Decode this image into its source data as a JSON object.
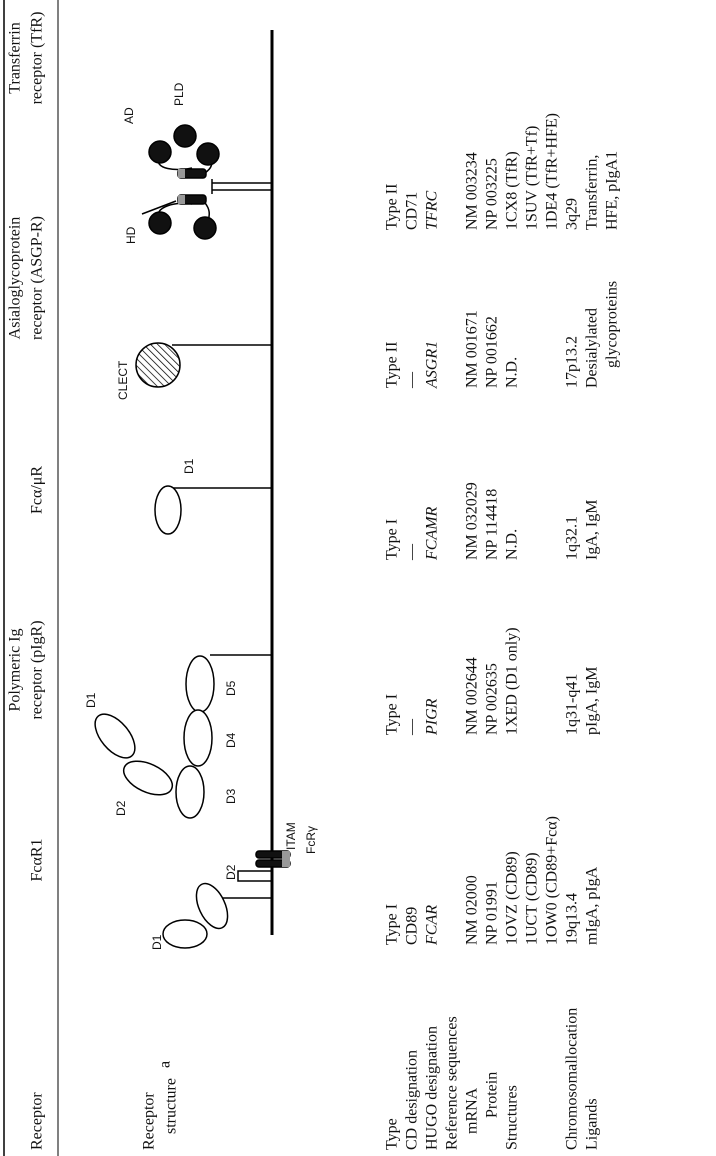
{
  "header": {
    "columns": [
      [
        "Receptor"
      ],
      [
        "FcαR1"
      ],
      [
        "Polymeric Ig",
        "receptor (pIgR)"
      ],
      [
        "Fcα/μR"
      ],
      [
        "Asialoglycoprotein",
        "receptor (ASGP-R)"
      ],
      [
        "Transferrin",
        "receptor (TfR)"
      ]
    ]
  },
  "structure_row": {
    "label": [
      "Receptor",
      "structure"
    ],
    "footnote": "a",
    "diagram_labels": [
      "D1",
      "D2",
      "ITAM",
      "FcRγ",
      "D1",
      "D2",
      "D3",
      "D4",
      "D5",
      "D1",
      "CLECT",
      "HD",
      "AD",
      "PLD"
    ]
  },
  "row_labels": [
    "Type",
    "CD designation",
    "HUGO designation",
    "Reference sequences",
    "mRNA",
    "Protein",
    "Structures",
    "Chromosomallocation",
    "Ligands"
  ],
  "receptors": [
    {
      "type": "Type I",
      "cd": "CD89",
      "hugo": "FCAR",
      "mrna": "NM 02000",
      "protein": "NP 01991",
      "structures": [
        "1OVZ (CD89)",
        "1UCT (CD89)",
        "1OW0 (CD89+Fcα)"
      ],
      "chromosome": "19q13.4",
      "ligands": [
        "mIgA, pIgA"
      ]
    },
    {
      "type": "Type I",
      "cd": "—",
      "hugo": "PIGR",
      "mrna": "NM 002644",
      "protein": "NP 002635",
      "structures": [
        "1XED (D1 only)"
      ],
      "chromosome": "1q31-q41",
      "ligands": [
        "pIgA, IgM"
      ]
    },
    {
      "type": "Type I",
      "cd": "—",
      "hugo": "FCAMR",
      "mrna": "NM 032029",
      "protein": "NP 114418",
      "structures": [
        "N.D."
      ],
      "chromosome": "1q32.1",
      "ligands": [
        "IgA, IgM"
      ]
    },
    {
      "type": "Type II",
      "cd": "—",
      "hugo": "ASGR1",
      "mrna": "NM 001671",
      "protein": "NP 001662",
      "structures": [
        "N.D."
      ],
      "chromosome": "17p13.2",
      "ligands": [
        "Desialylated",
        "glycoproteins"
      ]
    },
    {
      "type": "Type II",
      "cd": "CD71",
      "hugo": "TFRC",
      "mrna": "NM 003234",
      "protein": "NP 003225",
      "structures": [
        "1CX8 (TfR)",
        "1SUV (TfR+Tf)",
        "1DE4 (TfR+HFE)"
      ],
      "chromosome": "3q29",
      "ligands": [
        "Transferrin,",
        "HFE, pIgA1"
      ]
    }
  ]
}
